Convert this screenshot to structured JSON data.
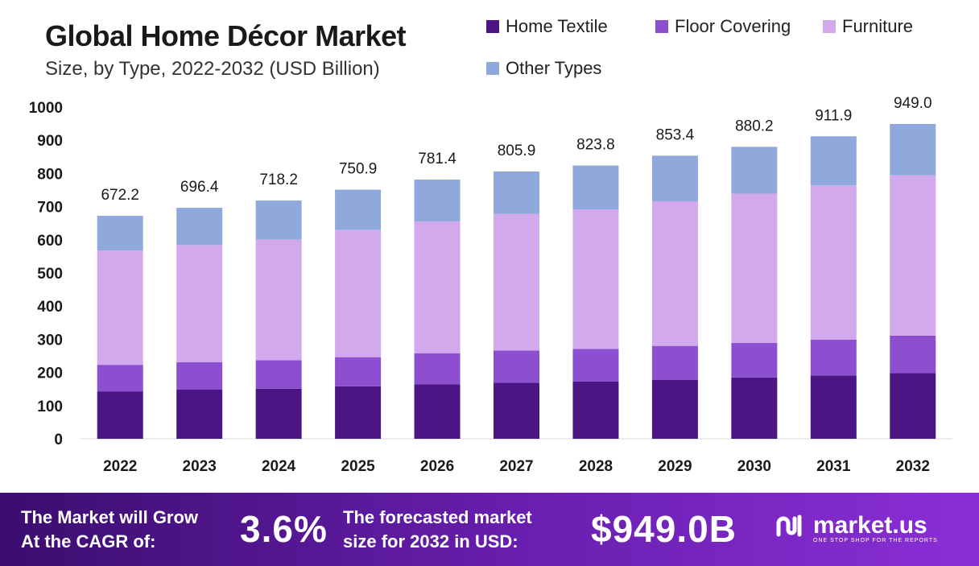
{
  "title": "Global Home Décor Market",
  "subtitle": "Size, by Type, 2022-2032 (USD Billion)",
  "footer": {
    "cagr_label_1": "The Market will Grow",
    "cagr_label_2": "At the CAGR of:",
    "cagr_value": "3.6%",
    "forecast_label_1": "The forecasted market",
    "forecast_label_2": "size for 2032 in USD:",
    "forecast_value": "$949.0B",
    "brand_name": "market.us",
    "brand_tagline": "ONE STOP SHOP FOR THE REPORTS"
  },
  "chart_data": {
    "type": "bar",
    "stacked": true,
    "categories": [
      "2022",
      "2023",
      "2024",
      "2025",
      "2026",
      "2027",
      "2028",
      "2029",
      "2030",
      "2031",
      "2032"
    ],
    "totals": [
      672.2,
      696.4,
      718.2,
      750.9,
      781.4,
      805.9,
      823.8,
      853.4,
      880.2,
      911.9,
      949.0
    ],
    "series": [
      {
        "name": "Home Textile",
        "color": "#4b1684",
        "values": [
          143,
          148,
          151,
          158,
          164,
          169,
          173,
          178,
          185,
          191,
          198
        ]
      },
      {
        "name": "Floor Covering",
        "color": "#8d4fd0",
        "values": [
          80,
          83,
          86,
          88,
          94,
          97,
          98,
          102,
          104,
          108,
          113
        ]
      },
      {
        "name": "Furniture",
        "color": "#d1a9ec",
        "values": [
          345,
          353,
          364,
          384,
          397,
          412,
          420,
          436,
          450,
          465,
          484
        ]
      },
      {
        "name": "Other Types",
        "color": "#8fa9dc",
        "values": [
          104.2,
          112.4,
          117.2,
          120.9,
          126.4,
          127.9,
          132.8,
          137.4,
          141.2,
          147.9,
          154.0
        ]
      }
    ],
    "ylim": [
      0,
      1000
    ],
    "yticks": [
      0,
      100,
      200,
      300,
      400,
      500,
      600,
      700,
      800,
      900,
      1000
    ],
    "grid": false,
    "legend": "top-right"
  }
}
